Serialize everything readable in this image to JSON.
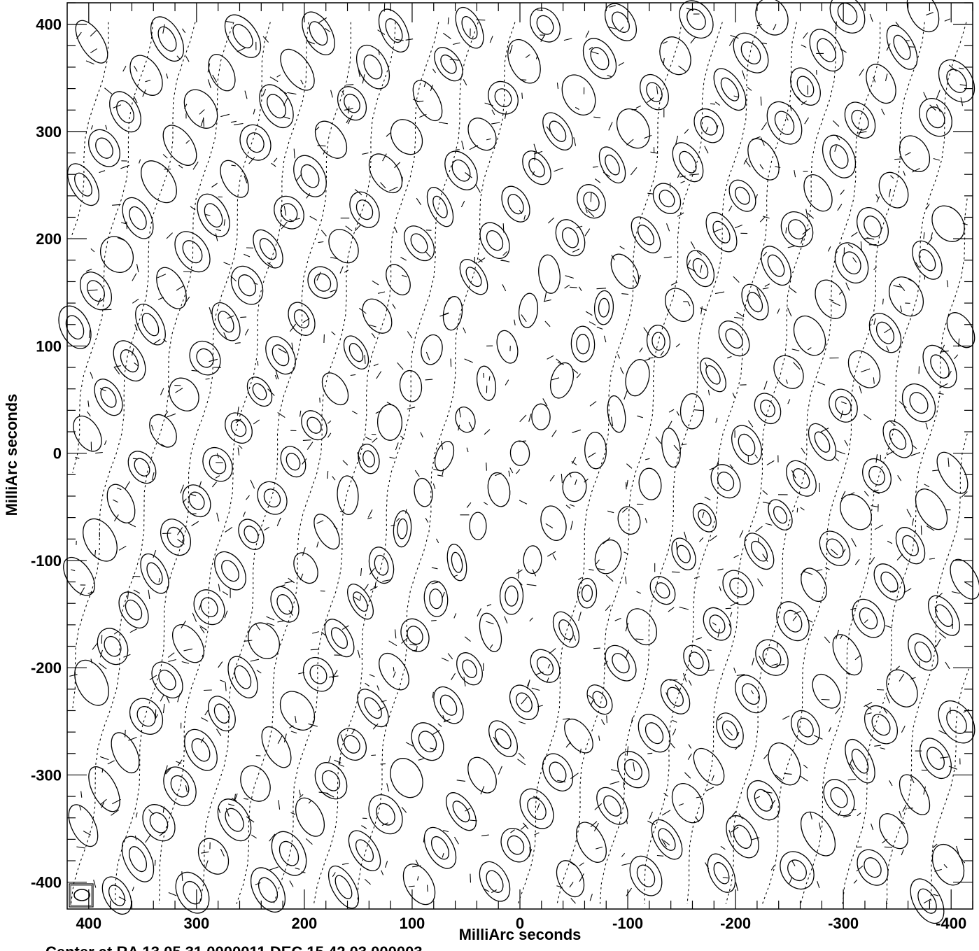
{
  "chart_data": {
    "type": "contour",
    "xlabel": "MilliArc seconds",
    "ylabel": "MilliArc seconds",
    "xlim": [
      420,
      -420
    ],
    "ylim": [
      -425,
      420
    ],
    "x_ticks": [
      400,
      300,
      200,
      100,
      0,
      -100,
      -200,
      -300,
      -400
    ],
    "y_ticks": [
      400,
      300,
      200,
      100,
      0,
      -100,
      -200,
      -300,
      -400
    ],
    "x_tick_labels": [
      "400",
      "300",
      "200",
      "100",
      "0",
      "-100",
      "-200",
      "-300",
      "-400"
    ],
    "y_tick_labels": [
      "400",
      "300",
      "200",
      "100",
      "0",
      "-100",
      "-200",
      "-300",
      "-400"
    ],
    "footer_text": "Center at RA 13 05 31.0000011  DEC 15 42 03.000003",
    "description_pattern": "interferometric dirty-beam style sidelobe pattern: tilted elliptical closed contours, negative levels dashed",
    "has_beam_ellipse": true
  }
}
